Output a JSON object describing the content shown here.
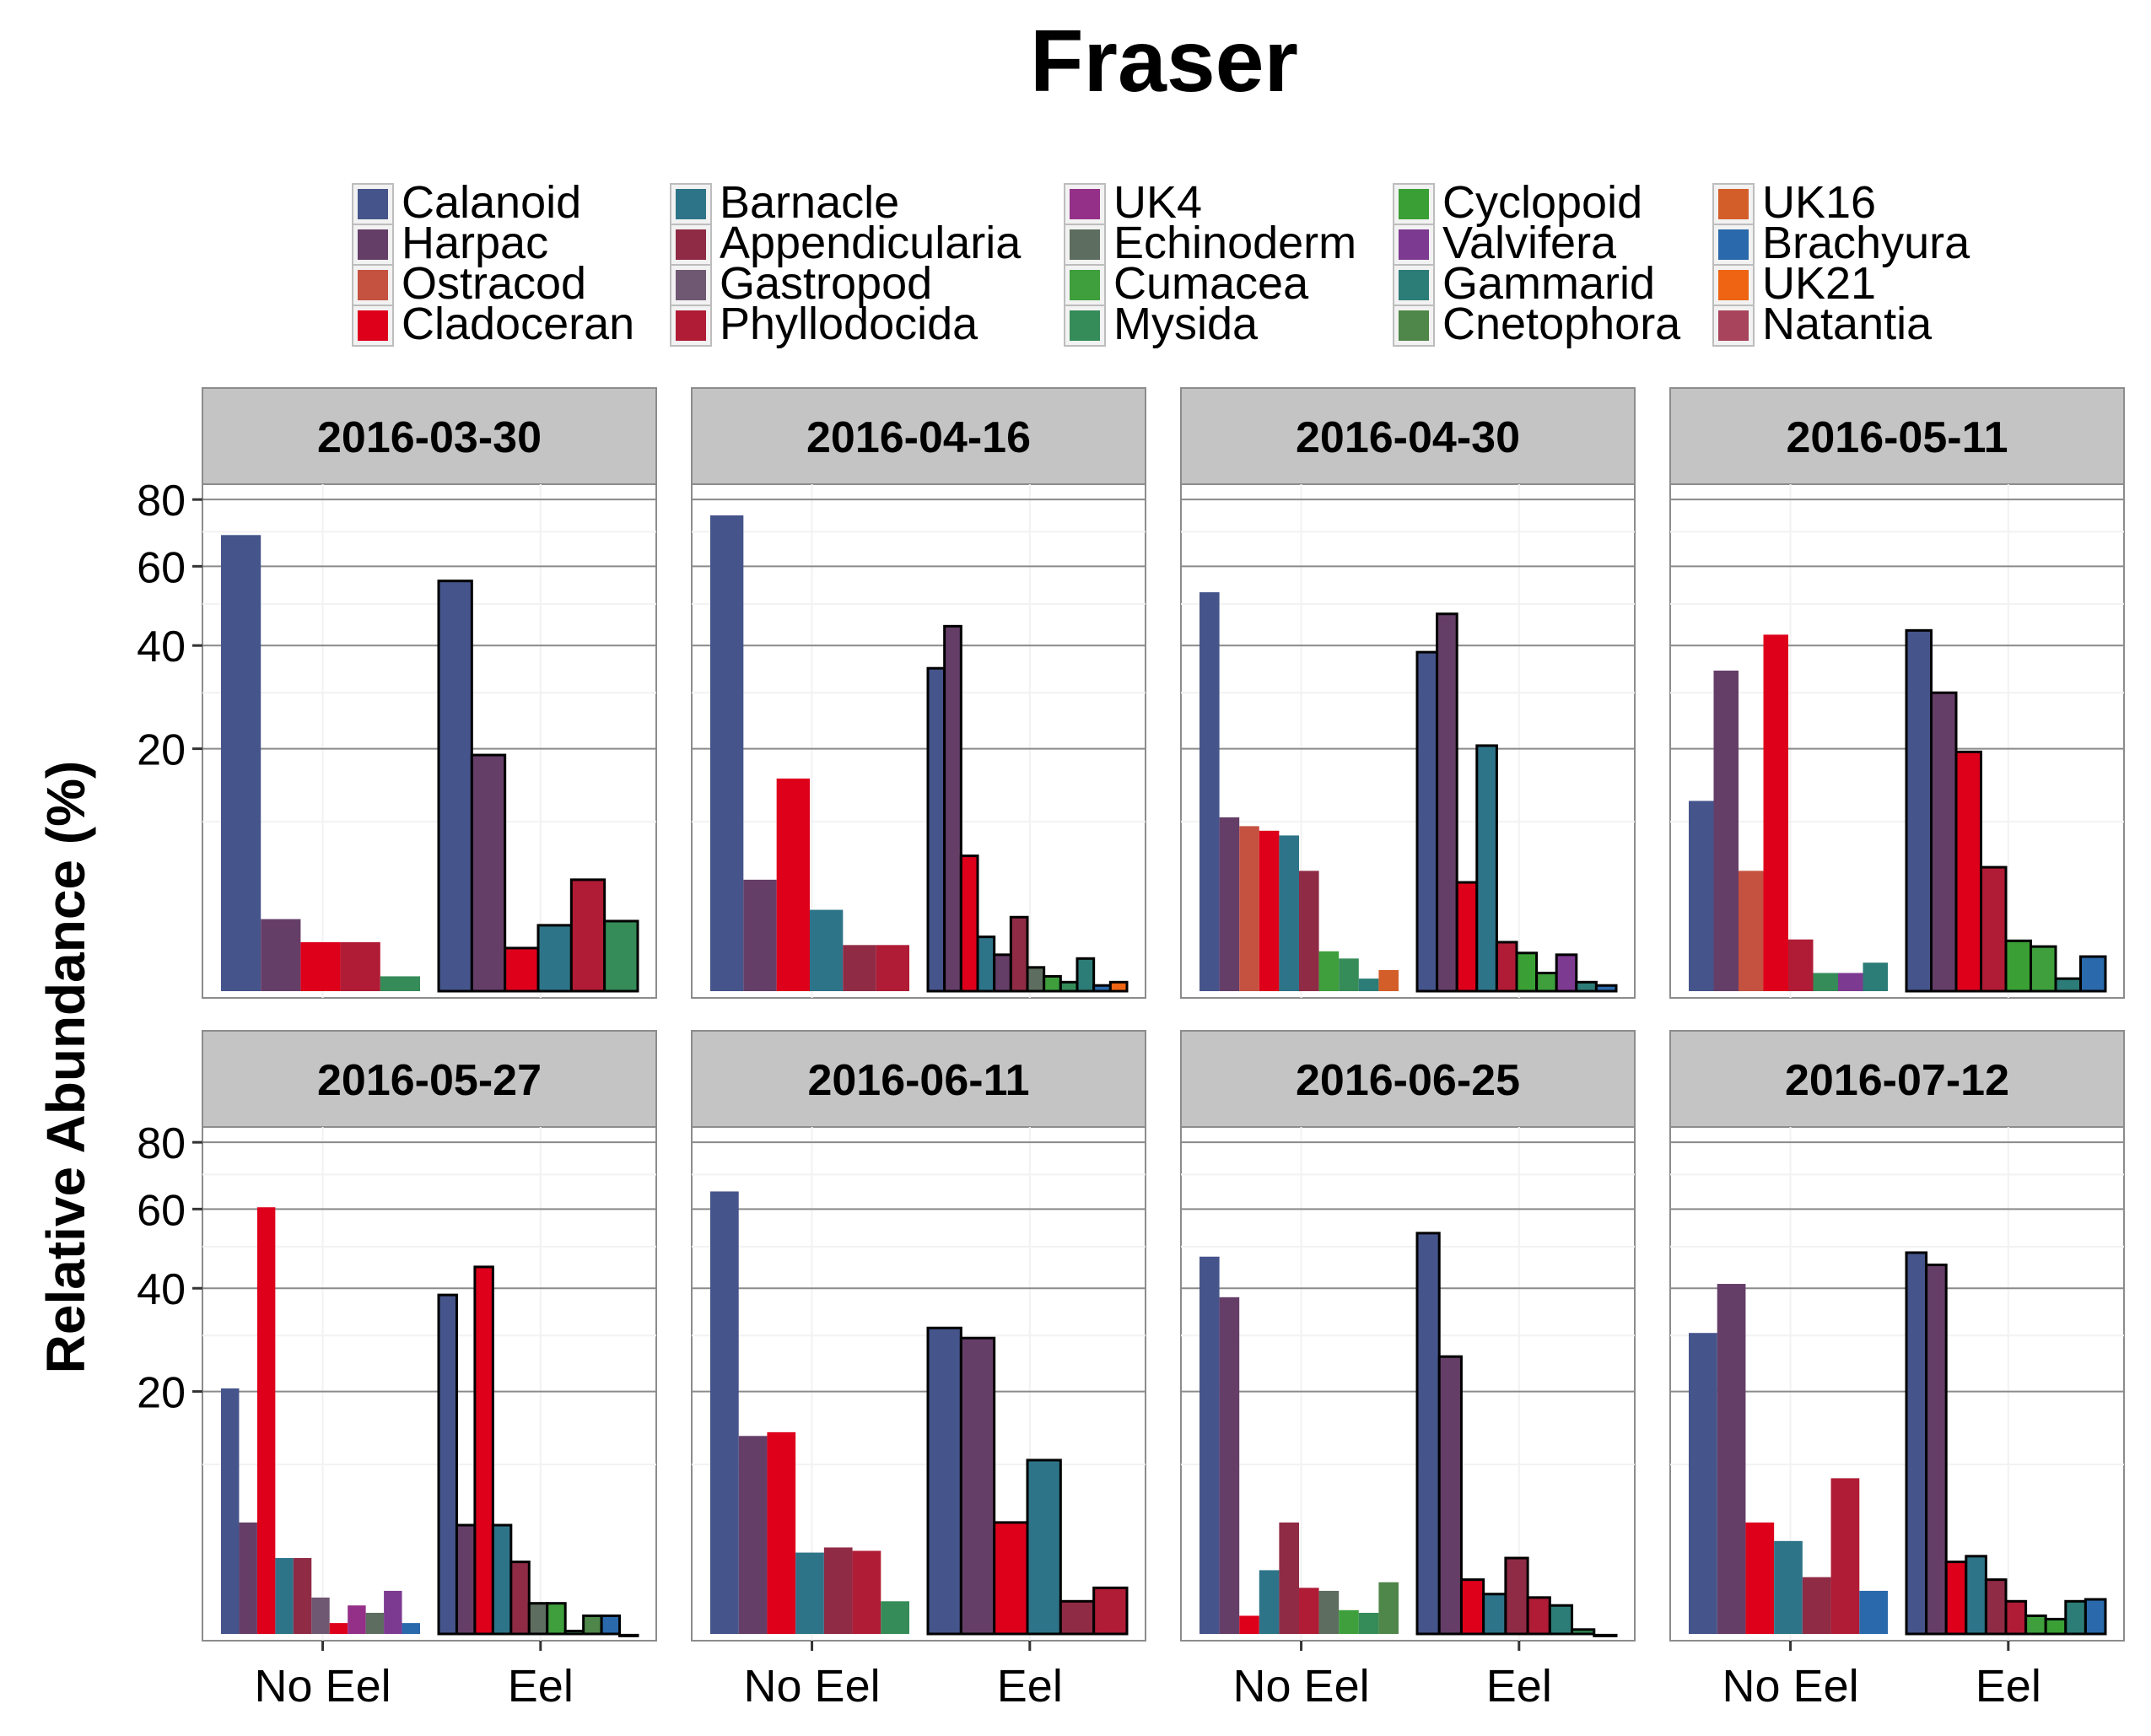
{
  "chart_data": {
    "type": "bar",
    "title": "Fraser",
    "xlabel": "",
    "ylabel": "Relative Abundance (%)",
    "y_scale": "sqrt",
    "ylim": [
      0,
      85
    ],
    "yticks": [
      20,
      40,
      60,
      80
    ],
    "grid": true,
    "legend_position": "top",
    "groups": [
      "No Eel",
      "Eel"
    ],
    "taxa": [
      {
        "name": "Calanoid",
        "color": "#45548B"
      },
      {
        "name": "Harpac",
        "color": "#653E68"
      },
      {
        "name": "Ostracod",
        "color": "#C55140"
      },
      {
        "name": "Cladoceran",
        "color": "#DE001B"
      },
      {
        "name": "Barnacle",
        "color": "#2E7489"
      },
      {
        "name": "Appendicularia",
        "color": "#8F2B45"
      },
      {
        "name": "Gastropod",
        "color": "#6F5872"
      },
      {
        "name": "Phyllodocida",
        "color": "#B01B35"
      },
      {
        "name": "UK4",
        "color": "#943088"
      },
      {
        "name": "Echinoderm",
        "color": "#5D6D5F"
      },
      {
        "name": "Cumacea",
        "color": "#3E9F3C"
      },
      {
        "name": "Mysida",
        "color": "#358C58"
      },
      {
        "name": "Cyclopoid",
        "color": "#3A9F34"
      },
      {
        "name": "Valvifera",
        "color": "#7D3A91"
      },
      {
        "name": "Gammarid",
        "color": "#2C7C77"
      },
      {
        "name": "Cnetophora",
        "color": "#4F8649"
      },
      {
        "name": "UK16",
        "color": "#D45E2A"
      },
      {
        "name": "Brachyura",
        "color": "#2A69AB"
      },
      {
        "name": "UK21",
        "color": "#EE6413"
      },
      {
        "name": "Natantia",
        "color": "#A8445B"
      }
    ],
    "panels": [
      {
        "date": "2016-03-30",
        "no_eel": [
          [
            "Calanoid",
            69
          ],
          [
            "Harpac",
            2
          ],
          [
            "Cladoceran",
            1
          ],
          [
            "Phyllodocida",
            1
          ],
          [
            "Mysida",
            0.15
          ]
        ],
        "eel": [
          [
            "Calanoid",
            56
          ],
          [
            "Harpac",
            19
          ],
          [
            "Cladoceran",
            0.8
          ],
          [
            "Barnacle",
            1.7
          ],
          [
            "Phyllodocida",
            4.5
          ],
          [
            "Mysida",
            1.9
          ]
        ]
      },
      {
        "date": "2016-04-16",
        "no_eel": [
          [
            "Calanoid",
            75
          ],
          [
            "Harpac",
            4.5
          ],
          [
            "Cladoceran",
            15.5
          ],
          [
            "Barnacle",
            2.5
          ],
          [
            "Appendicularia",
            0.9
          ],
          [
            "Phyllodocida",
            0.9
          ]
        ],
        "eel": [
          [
            "Calanoid",
            35
          ],
          [
            "Harpac",
            44.5
          ],
          [
            "Cladoceran",
            6.5
          ],
          [
            "Barnacle",
            1.2
          ],
          [
            "Harpac",
            0.6
          ],
          [
            "Appendicularia",
            2.1
          ],
          [
            "Echinoderm",
            0.3
          ],
          [
            "Cumacea",
            0.15
          ],
          [
            "Mysida",
            0.08
          ],
          [
            "Gammarid",
            0.5
          ],
          [
            "Brachyura",
            0.05
          ],
          [
            "UK21",
            0.08
          ]
        ]
      },
      {
        "date": "2016-04-30",
        "no_eel": [
          [
            "Calanoid",
            53
          ],
          [
            "Harpac",
            10.5
          ],
          [
            "Ostracod",
            9.5
          ],
          [
            "Cladoceran",
            9
          ],
          [
            "Barnacle",
            8.5
          ],
          [
            "Appendicularia",
            5.2
          ],
          [
            "Cumacea",
            0.7
          ],
          [
            "Mysida",
            0.5
          ],
          [
            "Gammarid",
            0.12
          ],
          [
            "UK16",
            0.25
          ]
        ],
        "eel": [
          [
            "Calanoid",
            38.5
          ],
          [
            "Harpac",
            47.5
          ],
          [
            "Cladoceran",
            4.3
          ],
          [
            "Barnacle",
            20.5
          ],
          [
            "Phyllodocida",
            1
          ],
          [
            "Cyclopoid",
            0.65
          ],
          [
            "Cumacea",
            0.2
          ],
          [
            "Valvifera",
            0.6
          ],
          [
            "Gammarid",
            0.08
          ],
          [
            "Brachyura",
            0.05
          ]
        ]
      },
      {
        "date": "2016-05-11",
        "no_eel": [
          [
            "Calanoid",
            12.5
          ],
          [
            "Harpac",
            34.5
          ],
          [
            "Ostracod",
            5.2
          ],
          [
            "Cladoceran",
            42.5
          ],
          [
            "Phyllodocida",
            1.1
          ],
          [
            "Mysida",
            0.2
          ],
          [
            "Valvifera",
            0.2
          ],
          [
            "Gammarid",
            0.4
          ]
        ],
        "eel": [
          [
            "Calanoid",
            43.5
          ],
          [
            "Harpac",
            30
          ],
          [
            "Cladoceran",
            19.5
          ],
          [
            "Phyllodocida",
            5.5
          ],
          [
            "Cyclopoid",
            1.05
          ],
          [
            "Cumacea",
            0.85
          ],
          [
            "Gammarid",
            0.12
          ],
          [
            "Brachyura",
            0.55
          ]
        ]
      },
      {
        "date": "2016-05-27",
        "no_eel": [
          [
            "Calanoid",
            20.5
          ],
          [
            "Harpac",
            4.5
          ],
          [
            "Cladoceran",
            60.5
          ],
          [
            "Barnacle",
            2.2
          ],
          [
            "Appendicularia",
            2.2
          ],
          [
            "Gastropod",
            0.6
          ],
          [
            "Cladoceran",
            0.1
          ],
          [
            "UK4",
            0.4
          ],
          [
            "Echinoderm",
            0.25
          ],
          [
            "Valvifera",
            0.8
          ],
          [
            "Brachyura",
            0.1
          ]
        ],
        "eel": [
          [
            "Calanoid",
            38.5
          ],
          [
            "Harpac",
            4.3
          ],
          [
            "Cladoceran",
            45
          ],
          [
            "Barnacle",
            4.3
          ],
          [
            "Appendicularia",
            2
          ],
          [
            "Echinoderm",
            0.45
          ],
          [
            "Cumacea",
            0.45
          ],
          [
            "Mysida",
            0.03
          ],
          [
            "Cnetophora",
            0.2
          ],
          [
            "Brachyura",
            0.2
          ],
          [
            "Phyllodocida",
            0.01
          ]
        ]
      },
      {
        "date": "2016-06-11",
        "no_eel": [
          [
            "Calanoid",
            65
          ],
          [
            "Harpac",
            13.5
          ],
          [
            "Cladoceran",
            14
          ],
          [
            "Barnacle",
            2.5
          ],
          [
            "Appendicularia",
            2.8
          ],
          [
            "Phyllodocida",
            2.6
          ],
          [
            "Mysida",
            0.5
          ]
        ],
        "eel": [
          [
            "Calanoid",
            31.5
          ],
          [
            "Harpac",
            29.5
          ],
          [
            "Cladoceran",
            4.5
          ],
          [
            "Barnacle",
            10.5
          ],
          [
            "Appendicularia",
            0.5
          ],
          [
            "Phyllodocida",
            0.9
          ]
        ]
      },
      {
        "date": "2016-06-25",
        "no_eel": [
          [
            "Calanoid",
            47.5
          ],
          [
            "Harpac",
            38
          ],
          [
            "Cladoceran",
            0.2
          ],
          [
            "Barnacle",
            1.6
          ],
          [
            "Appendicularia",
            4.5
          ],
          [
            "Phyllodocida",
            0.9
          ],
          [
            "Echinoderm",
            0.8
          ],
          [
            "Cumacea",
            0.3
          ],
          [
            "Mysida",
            0.25
          ],
          [
            "Cnetophora",
            1.1
          ]
        ],
        "eel": [
          [
            "Calanoid",
            53.5
          ],
          [
            "Harpac",
            26
          ],
          [
            "Cladoceran",
            1.2
          ],
          [
            "Barnacle",
            0.7
          ],
          [
            "Appendicularia",
            2.2
          ],
          [
            "Phyllodocida",
            0.6
          ],
          [
            "Gammarid",
            0.4
          ],
          [
            "Mysida",
            0.04
          ],
          [
            "Brachyura",
            0.01
          ]
        ]
      },
      {
        "date": "2016-07-12",
        "no_eel": [
          [
            "Calanoid",
            30.5
          ],
          [
            "Harpac",
            41
          ],
          [
            "Cladoceran",
            4.5
          ],
          [
            "Barnacle",
            3.2
          ],
          [
            "Appendicularia",
            1.3
          ],
          [
            "Phyllodocida",
            8.5
          ],
          [
            "Brachyura",
            0.8
          ]
        ],
        "eel": [
          [
            "Calanoid",
            48.5
          ],
          [
            "Harpac",
            45.5
          ],
          [
            "Cladoceran",
            2
          ],
          [
            "Barnacle",
            2.3
          ],
          [
            "Appendicularia",
            1.2
          ],
          [
            "Phyllodocida",
            0.5
          ],
          [
            "Cumacea",
            0.2
          ],
          [
            "Cyclopoid",
            0.15
          ],
          [
            "Gammarid",
            0.5
          ],
          [
            "Brachyura",
            0.55
          ]
        ]
      }
    ]
  }
}
